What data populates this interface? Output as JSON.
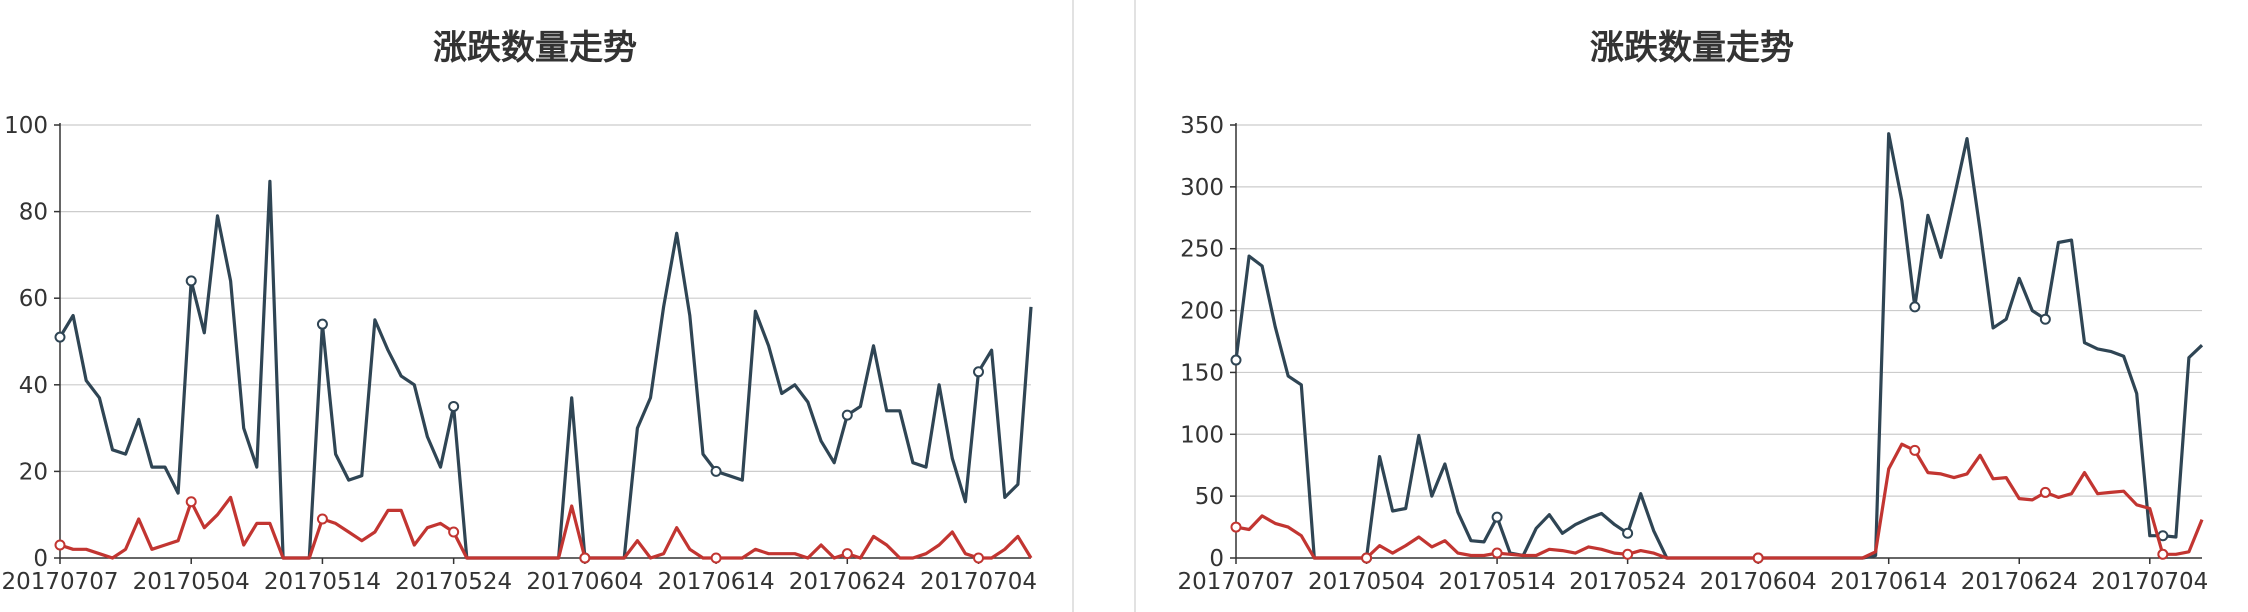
{
  "colors": {
    "series_dark": "#2f4554",
    "series_red": "#c23531",
    "grid": "#cccccc",
    "axis": "#333333"
  },
  "chart_data": [
    {
      "type": "line",
      "title": "涨跌数量走势",
      "xlabel": "",
      "ylabel": "",
      "ylim": [
        0,
        100
      ],
      "yticks": [
        0,
        20,
        40,
        60,
        80,
        100
      ],
      "grid": true,
      "x_tick_labels": [
        {
          "index": 0,
          "label": "20170707"
        },
        {
          "index": 10,
          "label": "20170504"
        },
        {
          "index": 20,
          "label": "20170514"
        },
        {
          "index": 30,
          "label": "20170524"
        },
        {
          "index": 40,
          "label": "20170604"
        },
        {
          "index": 50,
          "label": "20170614"
        },
        {
          "index": 60,
          "label": "20170624"
        },
        {
          "index": 70,
          "label": "20170704"
        }
      ],
      "series": [
        {
          "color_key": "series_dark",
          "values": [
            51,
            56,
            41,
            37,
            25,
            24,
            32,
            21,
            21,
            15,
            64,
            52,
            79,
            64,
            30,
            21,
            87,
            0,
            0,
            0,
            54,
            24,
            18,
            19,
            55,
            48,
            42,
            40,
            28,
            21,
            35,
            0,
            0,
            0,
            0,
            0,
            0,
            0,
            0,
            37,
            0,
            0,
            0,
            0,
            30,
            37,
            58,
            75,
            56,
            24,
            20,
            19,
            18,
            57,
            49,
            38,
            40,
            36,
            27,
            22,
            33,
            35,
            49,
            34,
            34,
            22,
            21,
            40,
            23,
            13,
            43,
            48,
            14,
            17,
            58
          ],
          "marker_indices": [
            0,
            10,
            20,
            30,
            40,
            50,
            60,
            70
          ]
        },
        {
          "color_key": "series_red",
          "values": [
            3,
            2,
            2,
            1,
            0,
            2,
            9,
            2,
            3,
            4,
            13,
            7,
            10,
            14,
            3,
            8,
            8,
            0,
            0,
            0,
            9,
            8,
            6,
            4,
            6,
            11,
            11,
            3,
            7,
            8,
            6,
            0,
            0,
            0,
            0,
            0,
            0,
            0,
            0,
            12,
            0,
            0,
            0,
            0,
            4,
            0,
            1,
            7,
            2,
            0,
            0,
            0,
            0,
            2,
            1,
            1,
            1,
            0,
            3,
            0,
            1,
            0,
            5,
            3,
            0,
            0,
            1,
            3,
            6,
            1,
            0,
            0,
            2,
            5,
            0
          ],
          "marker_indices": [
            0,
            10,
            20,
            30,
            40,
            50,
            60,
            70
          ]
        }
      ]
    },
    {
      "type": "line",
      "title": "涨跌数量走势",
      "xlabel": "",
      "ylabel": "",
      "ylim": [
        0,
        350
      ],
      "yticks": [
        0,
        50,
        100,
        150,
        200,
        250,
        300,
        350
      ],
      "grid": true,
      "x_tick_labels": [
        {
          "index": 0,
          "label": "20170707"
        },
        {
          "index": 10,
          "label": "20170504"
        },
        {
          "index": 20,
          "label": "20170514"
        },
        {
          "index": 30,
          "label": "20170524"
        },
        {
          "index": 40,
          "label": "20170604"
        },
        {
          "index": 50,
          "label": "20170614"
        },
        {
          "index": 60,
          "label": "20170624"
        },
        {
          "index": 70,
          "label": "20170704"
        }
      ],
      "series": [
        {
          "color_key": "series_dark",
          "values": [
            160,
            244,
            236,
            187,
            147,
            140,
            0,
            0,
            0,
            0,
            0,
            82,
            38,
            40,
            99,
            50,
            76,
            37,
            14,
            13,
            33,
            4,
            2,
            24,
            35,
            20,
            27,
            32,
            36,
            27,
            20,
            52,
            22,
            0,
            0,
            0,
            0,
            0,
            0,
            0,
            0,
            0,
            0,
            0,
            0,
            0,
            0,
            0,
            0,
            2,
            343,
            289,
            203,
            277,
            243,
            291,
            339,
            265,
            186,
            193,
            226,
            200,
            193,
            255,
            257,
            174,
            169,
            167,
            163,
            133,
            18,
            18,
            17,
            162,
            172
          ],
          "marker_indices": [
            0,
            10,
            20,
            30,
            40,
            52,
            62,
            71
          ]
        },
        {
          "color_key": "series_red",
          "values": [
            25,
            23,
            34,
            28,
            25,
            18,
            0,
            0,
            0,
            0,
            0,
            10,
            4,
            10,
            17,
            9,
            14,
            4,
            2,
            2,
            4,
            3,
            2,
            2,
            7,
            6,
            4,
            9,
            7,
            4,
            3,
            6,
            4,
            0,
            0,
            0,
            0,
            0,
            0,
            0,
            0,
            0,
            0,
            0,
            0,
            0,
            0,
            0,
            0,
            5,
            72,
            92,
            87,
            69,
            68,
            65,
            68,
            83,
            64,
            65,
            48,
            47,
            53,
            49,
            52,
            69,
            52,
            53,
            54,
            43,
            40,
            3,
            3,
            5,
            31
          ],
          "marker_indices": [
            0,
            10,
            20,
            30,
            40,
            52,
            62,
            71
          ]
        }
      ]
    }
  ]
}
